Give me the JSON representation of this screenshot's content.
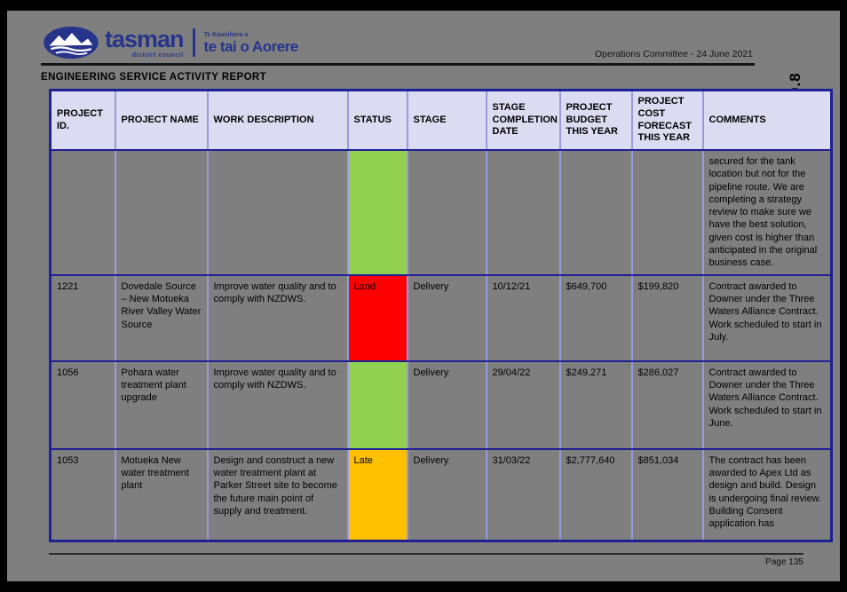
{
  "page": {
    "committee_line": "Operations Committee - 24 June 2021",
    "agenda_item": "9.8",
    "title": "ENGINEERING SERVICE ACTIVITY REPORT",
    "footer_page": "Page 135"
  },
  "logo": {
    "name": "tasman",
    "sub": "district council",
    "maori_small": "Te Kaunihera o",
    "maori_big": "te tai o Aorere",
    "brand_color": "#27348b"
  },
  "colors": {
    "page_background": "#7f7f7f",
    "header_cell": "#dbdbf2",
    "border_navy": "#1f1f96",
    "border_light": "#9b9bd9",
    "status_green": "#92d050",
    "status_red": "#ff0000",
    "status_amber": "#ffc000"
  },
  "table": {
    "columns": [
      "PROJECT ID.",
      "PROJECT NAME",
      "WORK DESCRIPTION",
      "STATUS",
      "STAGE",
      "STAGE COMPLETION DATE",
      "PROJECT BUDGET THIS YEAR",
      "PROJECT COST FORECAST THIS YEAR",
      "COMMENTS"
    ],
    "rows": [
      {
        "id": "",
        "name": "",
        "description": "",
        "status_label": "",
        "status_color": "#92d050",
        "stage": "",
        "completion_date": "",
        "budget": "",
        "forecast": "",
        "comments": "secured for the tank location but not for the pipeline route.  We are completing a strategy review to make sure we have the best solution, given cost is higher than anticipated in the original business case."
      },
      {
        "id": "1221",
        "name": "Dovedale Source – New Motueka River Valley Water Source",
        "description": "Improve water quality and to comply with NZDWS.",
        "status_label": "Land",
        "status_color": "#ff0000",
        "stage": "Delivery",
        "completion_date": "10/12/21",
        "budget": "$649,700",
        "forecast": "$199,820",
        "comments": "Contract awarded to Downer under the Three Waters Alliance Contract. Work scheduled to start in July."
      },
      {
        "id": "1056",
        "name": "Pohara water treatment plant upgrade",
        "description": "Improve water quality and to comply with NZDWS.",
        "status_label": "",
        "status_color": "#92d050",
        "stage": "Delivery",
        "completion_date": "29/04/22",
        "budget": "$249,271",
        "forecast": "$286,027",
        "comments": "Contract awarded to Downer under the Three Waters Alliance Contract. Work scheduled to start in June."
      },
      {
        "id": "1053",
        "name": "Motueka New water treatment plant",
        "description": "Design and construct a new water treatment plant at Parker Street site to become the future main point of supply and treatment.",
        "status_label": "Late",
        "status_color": "#ffc000",
        "stage": "Delivery",
        "completion_date": "31/03/22",
        "budget": "$2,777,640",
        "forecast": "$851,034",
        "comments": "The contract has been awarded to Apex Ltd as design and build. Design is undergoing final review. Building Consent application has"
      }
    ]
  }
}
